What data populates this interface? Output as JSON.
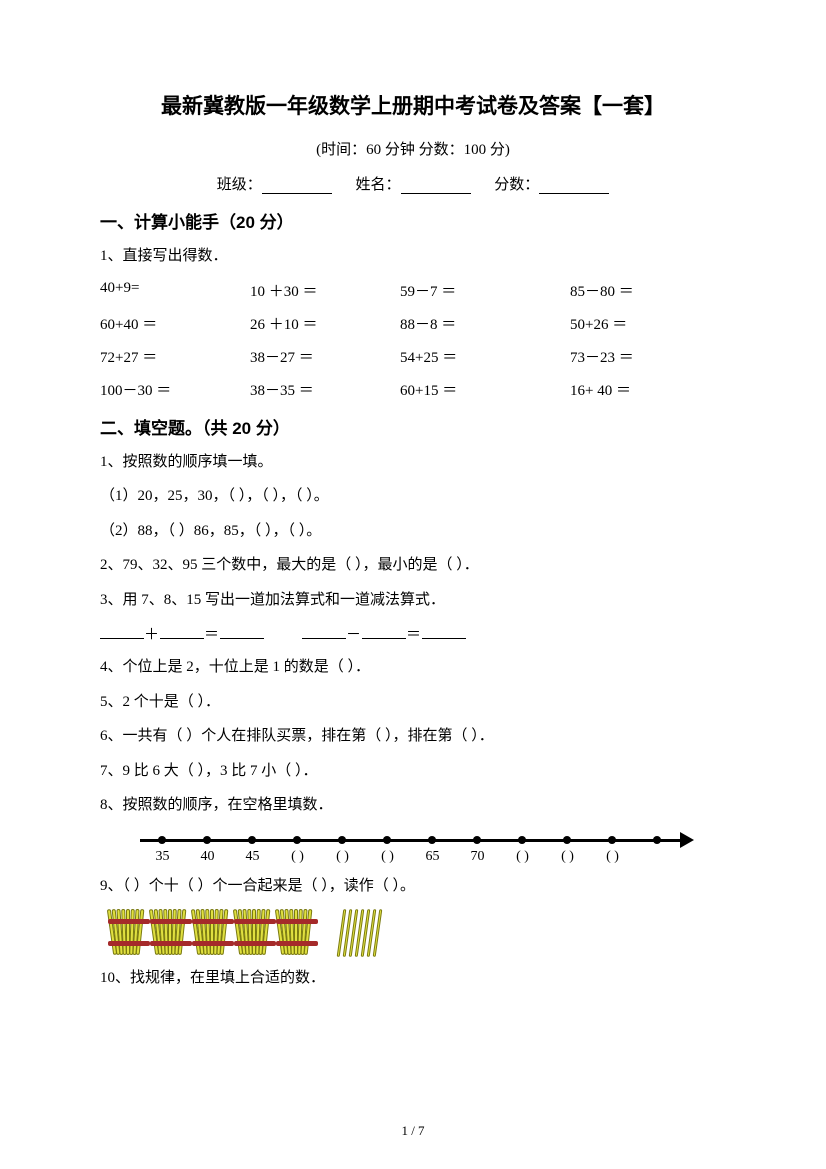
{
  "title": "最新冀教版一年级数学上册期中考试卷及答案【一套】",
  "subtitle": "(时间：60 分钟    分数：100 分)",
  "info": {
    "class": "班级：",
    "name": "姓名：",
    "score": "分数："
  },
  "section1": {
    "header": "一、计算小能手（20 分）",
    "q1": "1、直接写出得数．",
    "cells": [
      "40+9=",
      "10 ＋30 ＝",
      "59－7 ＝",
      "85－80 ＝",
      "60+40 ＝",
      "26 ＋10 ＝",
      "88－8 ＝",
      "50+26 ＝",
      "72+27 ＝",
      "38－27 ＝",
      "54+25 ＝",
      "73－23 ＝",
      "100－30 ＝",
      "38－35 ＝",
      "60+15 ＝",
      "16+ 40 ＝"
    ]
  },
  "section2": {
    "header": "二、填空题。（共 20 分）",
    "q1": "1、按照数的顺序填一填。",
    "q1a": "（1）20，25，30，（       ），（       ），（       ）。",
    "q1b": "（2）88，（       ）86，85，（       ），（       ）。",
    "q2": "2、79、32、95 三个数中，最大的是（       ），最小的是（       ）．",
    "q3": "3、用 7、8、15 写出一道加法算式和一道减法算式．",
    "q4": "4、个位上是 2，十位上是 1 的数是（       ）．",
    "q5": "5、2 个十是（       ）．",
    "q6": "6、一共有（       ）个人在排队买票，排在第（       ），排在第（       ）．",
    "q7": "7、9 比 6 大（       ），3 比 7 小（       ）．",
    "q8": "8、按照数的顺序，在空格里填数．",
    "numline_labels": [
      "35",
      "40",
      "45",
      "( )",
      "( )",
      "( )",
      "65",
      "70",
      "( )",
      "( )",
      "( )",
      ""
    ],
    "q9": "9、（       ）个十（       ）个一合起来是（       ），读作（       ）。",
    "q10": "10、找规律，在里填上合适的数．"
  },
  "footer": "1 / 7",
  "style": {
    "body_width": 826,
    "body_height": 1169,
    "title_fontsize": 21,
    "body_fontsize": 15,
    "text_color": "#000000",
    "background": "#ffffff",
    "stick_color": "#e0e040",
    "stick_border": "#7a7a10",
    "band_color": "#a52a2a"
  }
}
